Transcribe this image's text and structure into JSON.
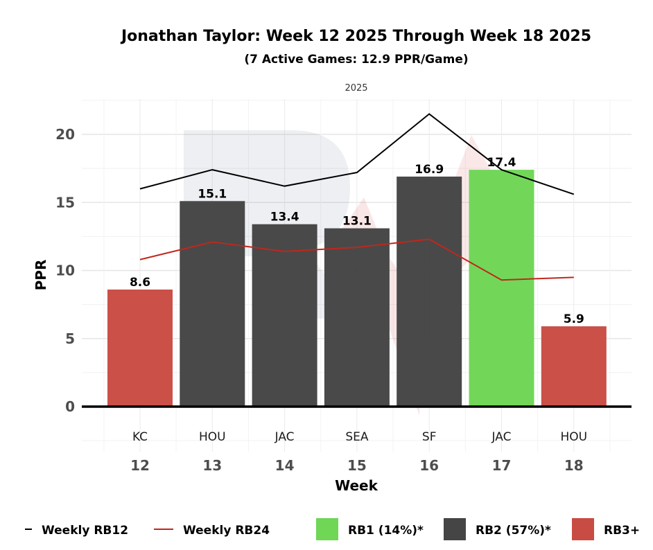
{
  "chart_data": {
    "type": "bar",
    "title": "Jonathan Taylor: Week 12 2025 Through Week 18 2025",
    "subtitle": "(7 Active Games: 12.9 PPR/Game)",
    "facet_label": "2025",
    "xlabel": "Week",
    "ylabel": "PPR",
    "ylim": [
      -2.5,
      22.5
    ],
    "yticks": [
      0,
      5,
      10,
      15,
      20
    ],
    "grid": true,
    "categories": [
      "12",
      "13",
      "14",
      "15",
      "16",
      "17",
      "18"
    ],
    "opponents": [
      "KC",
      "HOU",
      "JAC",
      "SEA",
      "SF",
      "JAC",
      "HOU"
    ],
    "values": [
      8.6,
      15.1,
      13.4,
      13.1,
      16.9,
      17.4,
      5.9
    ],
    "value_labels": [
      "8.6",
      "15.1",
      "13.4",
      "13.1",
      "16.9",
      "17.4",
      "5.9"
    ],
    "tiers": [
      "RB3+",
      "RB2",
      "RB2",
      "RB2",
      "RB2",
      "RB1",
      "RB3+"
    ],
    "tier_colors": {
      "RB1": "#6fd656",
      "RB2": "#454545",
      "RB3+": "#c94c44"
    },
    "series": [
      {
        "name": "Weekly RB12",
        "type": "line",
        "color": "#000000",
        "values": [
          16.0,
          17.4,
          16.2,
          17.2,
          21.5,
          17.4,
          15.6
        ]
      },
      {
        "name": "Weekly RB24",
        "type": "line",
        "color": "#c0271c",
        "values": [
          10.8,
          12.1,
          11.4,
          11.7,
          12.3,
          9.3,
          9.5
        ]
      }
    ],
    "legend": {
      "position": "bottom",
      "items": [
        {
          "label": "Weekly RB12",
          "kind": "line",
          "color": "#000000"
        },
        {
          "label": "Weekly RB24",
          "kind": "line",
          "color": "#c0271c"
        },
        {
          "label": "RB1 (14%)*",
          "kind": "box",
          "color": "#6fd656"
        },
        {
          "label": "RB2 (57%)*",
          "kind": "box",
          "color": "#454545"
        },
        {
          "label": "RB3+",
          "kind": "box",
          "color": "#c94c44"
        }
      ]
    }
  }
}
